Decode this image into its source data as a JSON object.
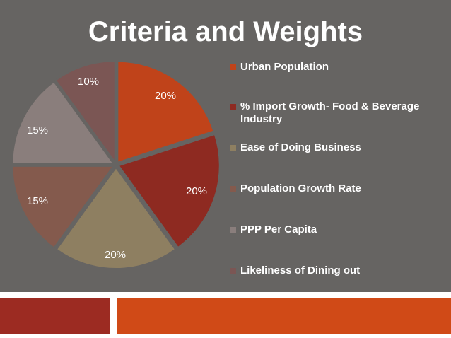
{
  "slide": {
    "title": "Criteria and Weights",
    "background": "#666462"
  },
  "chart_data": {
    "type": "pie",
    "title": "",
    "series": [
      {
        "name": "Urban Population",
        "value": 20,
        "label": "20%",
        "color": "#c0431a"
      },
      {
        "name": "% Import Growth- Food & Beverage Industry",
        "value": 20,
        "label": "20%",
        "color": "#8e2a21"
      },
      {
        "name": "Ease of Doing Business",
        "value": 20,
        "label": "20%",
        "color": "#8e7f61"
      },
      {
        "name": "Population Growth Rate",
        "value": 15,
        "label": "15%",
        "color": "#845a4d"
      },
      {
        "name": "PPP Per Capita",
        "value": 15,
        "label": "15%",
        "color": "#8a7e7c"
      },
      {
        "name": "Likeliness of Dining out",
        "value": 10,
        "label": "10%",
        "color": "#7b5654"
      }
    ],
    "legend_position": "right"
  },
  "footer": {
    "left_color": "#9c2b22",
    "right_color": "#d04a17"
  }
}
